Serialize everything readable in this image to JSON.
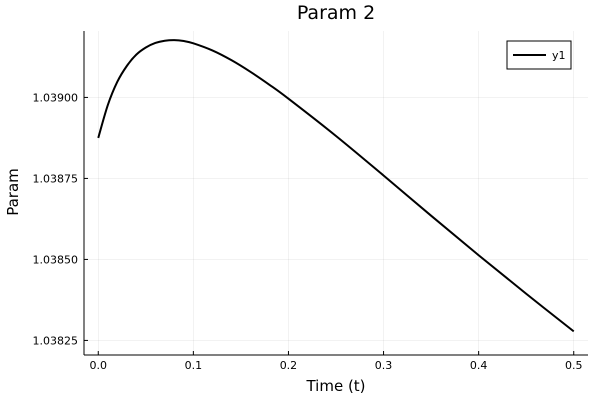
{
  "chart_data": {
    "type": "line",
    "title": "Param 2",
    "xlabel": "Time (t)",
    "ylabel": "Param",
    "xlim": [
      -0.015,
      0.515
    ],
    "ylim": [
      1.038205,
      1.039205
    ],
    "xticks": [
      0.0,
      0.1,
      0.2,
      0.3,
      0.4,
      0.5
    ],
    "xtick_labels": [
      "0.0",
      "0.1",
      "0.2",
      "0.3",
      "0.4",
      "0.5"
    ],
    "yticks": [
      1.03825,
      1.0385,
      1.03875,
      1.039
    ],
    "ytick_labels": [
      "1.03825",
      "1.03850",
      "1.03875",
      "1.03900"
    ],
    "grid": true,
    "legend": {
      "position": "top-right",
      "entries": [
        "y1"
      ]
    },
    "series": [
      {
        "name": "y1",
        "color": "#000000",
        "x": [
          0.0,
          0.01,
          0.02,
          0.03,
          0.04,
          0.05,
          0.06,
          0.07,
          0.08,
          0.09,
          0.1,
          0.12,
          0.14,
          0.16,
          0.18,
          0.2,
          0.25,
          0.3,
          0.35,
          0.4,
          0.45,
          0.5
        ],
        "y": [
          1.038875,
          1.038976,
          1.039048,
          1.039097,
          1.039132,
          1.039154,
          1.039168,
          1.039175,
          1.039177,
          1.039174,
          1.039167,
          1.039145,
          1.039115,
          1.039079,
          1.039039,
          1.038996,
          1.038881,
          1.038759,
          1.038635,
          1.038513,
          1.038394,
          1.038278
        ]
      }
    ]
  }
}
